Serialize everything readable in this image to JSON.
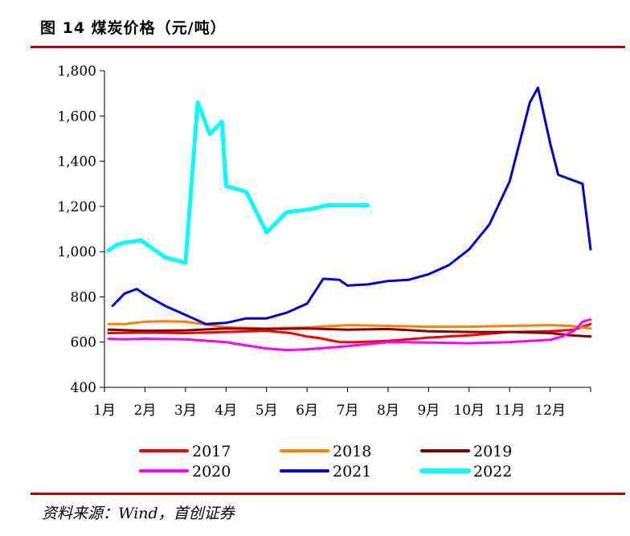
{
  "title": "图 14 煤炭价格（元/吨）",
  "source": "资料来源：Wind，首创证券",
  "chart_data": {
    "type": "line",
    "title": "煤炭价格（元/吨）",
    "xlabel": "",
    "ylabel": "",
    "x_domain": [
      0,
      12
    ],
    "ylim": [
      400,
      1800
    ],
    "yticks": [
      400,
      600,
      800,
      1000,
      1200,
      1400,
      1600,
      1800
    ],
    "ytick_labels": [
      "400",
      "600",
      "800",
      "1,000",
      "1,200",
      "1,400",
      "1,600",
      "1,800"
    ],
    "xtick_labels": [
      "1月",
      "2月",
      "3月",
      "4月",
      "5月",
      "6月",
      "7月",
      "8月",
      "9月",
      "10月",
      "11月",
      "12月"
    ],
    "grid": false,
    "legend_position": "bottom",
    "series": [
      {
        "name": "2017",
        "color": "#ff0000",
        "stroke": 3,
        "x": [
          0.1,
          1.0,
          2.0,
          3.0,
          4.0,
          4.6,
          5.0,
          5.3,
          5.8,
          6.2,
          7.0,
          8.0,
          9.0,
          10.0,
          11.0,
          11.6,
          12.0
        ],
        "y": [
          640,
          642,
          640,
          645,
          650,
          640,
          625,
          618,
          600,
          600,
          605,
          620,
          630,
          645,
          648,
          655,
          680
        ]
      },
      {
        "name": "2018",
        "color": "#ff8000",
        "stroke": 3,
        "x": [
          0.1,
          0.5,
          1.0,
          1.5,
          2.0,
          2.5,
          3.0,
          4.0,
          5.0,
          6.0,
          7.0,
          8.0,
          9.0,
          10.0,
          11.0,
          11.5,
          12.0
        ],
        "y": [
          680,
          680,
          690,
          692,
          690,
          678,
          665,
          660,
          665,
          675,
          672,
          668,
          668,
          672,
          675,
          672,
          660
        ]
      },
      {
        "name": "2019",
        "color": "#8b0000",
        "stroke": 3,
        "x": [
          0.1,
          1.0,
          2.0,
          3.0,
          4.0,
          5.0,
          6.0,
          7.0,
          8.0,
          9.0,
          10.0,
          11.0,
          11.5,
          12.0
        ],
        "y": [
          655,
          650,
          652,
          660,
          658,
          660,
          655,
          658,
          648,
          645,
          645,
          640,
          630,
          625
        ]
      },
      {
        "name": "2020",
        "color": "#ff00ff",
        "stroke": 3,
        "x": [
          0.1,
          0.5,
          1.0,
          2.0,
          3.0,
          3.5,
          4.0,
          4.5,
          5.0,
          6.0,
          7.0,
          8.0,
          9.0,
          10.0,
          11.0,
          11.3,
          11.6,
          11.8,
          12.0
        ],
        "y": [
          615,
          612,
          615,
          612,
          600,
          585,
          572,
          565,
          568,
          582,
          600,
          598,
          595,
          600,
          610,
          625,
          650,
          690,
          700
        ]
      },
      {
        "name": "2021",
        "color": "#0000dd",
        "stroke": 3,
        "x": [
          0.2,
          0.5,
          0.8,
          1.0,
          1.5,
          2.0,
          2.5,
          3.0,
          3.5,
          4.0,
          4.5,
          5.0,
          5.4,
          5.8,
          6.0,
          6.5,
          7.0,
          7.5,
          8.0,
          8.5,
          9.0,
          9.5,
          10.0,
          10.5,
          10.7,
          11.0,
          11.2,
          11.5,
          11.8,
          12.0
        ],
        "y": [
          760,
          815,
          835,
          810,
          760,
          720,
          680,
          685,
          705,
          705,
          730,
          770,
          880,
          875,
          850,
          855,
          870,
          875,
          900,
          940,
          1010,
          1120,
          1310,
          1660,
          1725,
          1480,
          1340,
          1320,
          1300,
          1010
        ]
      },
      {
        "name": "2022",
        "color": "#00ffff",
        "stroke": 5,
        "x": [
          0.1,
          0.3,
          0.5,
          0.9,
          1.5,
          2.0,
          2.3,
          2.6,
          2.9,
          3.0,
          3.5,
          4.0,
          4.5,
          5.0,
          5.5,
          6.0,
          6.5
        ],
        "y": [
          1005,
          1030,
          1040,
          1050,
          975,
          950,
          1660,
          1520,
          1575,
          1290,
          1265,
          1085,
          1175,
          1185,
          1205,
          1205,
          1205
        ]
      }
    ]
  }
}
